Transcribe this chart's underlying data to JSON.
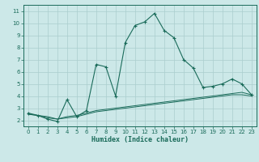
{
  "xlabel": "Humidex (Indice chaleur)",
  "bg_color": "#cce8e8",
  "grid_color": "#aacece",
  "line_color": "#1a6b5a",
  "spine_color": "#1a6b5a",
  "xlim": [
    -0.5,
    23.5
  ],
  "ylim": [
    1.5,
    11.5
  ],
  "xticks": [
    0,
    1,
    2,
    3,
    4,
    5,
    6,
    7,
    8,
    9,
    10,
    11,
    12,
    13,
    14,
    15,
    16,
    17,
    18,
    19,
    20,
    21,
    22,
    23
  ],
  "yticks": [
    2,
    3,
    4,
    5,
    6,
    7,
    8,
    9,
    10,
    11
  ],
  "series1_x": [
    0,
    1,
    2,
    3,
    4,
    5,
    6,
    7,
    8,
    9,
    10,
    11,
    12,
    13,
    14,
    15,
    16,
    17,
    18,
    19,
    20,
    21,
    22,
    23
  ],
  "series1_y": [
    2.6,
    2.4,
    2.1,
    1.9,
    3.7,
    2.3,
    2.8,
    6.6,
    6.4,
    4.0,
    8.4,
    9.8,
    10.1,
    10.8,
    9.4,
    8.8,
    7.0,
    6.3,
    4.7,
    4.8,
    5.0,
    5.4,
    5.0,
    4.1
  ],
  "series2_x": [
    0,
    1,
    2,
    3,
    4,
    5,
    6,
    7,
    8,
    9,
    10,
    11,
    12,
    13,
    14,
    15,
    16,
    17,
    18,
    19,
    20,
    21,
    22,
    23
  ],
  "series2_y": [
    2.5,
    2.4,
    2.2,
    2.1,
    2.3,
    2.4,
    2.6,
    2.8,
    2.9,
    3.0,
    3.1,
    3.2,
    3.3,
    3.4,
    3.5,
    3.6,
    3.7,
    3.8,
    3.9,
    4.0,
    4.1,
    4.2,
    4.3,
    4.1
  ],
  "series3_x": [
    0,
    1,
    2,
    3,
    4,
    5,
    6,
    7,
    8,
    9,
    10,
    11,
    12,
    13,
    14,
    15,
    16,
    17,
    18,
    19,
    20,
    21,
    22,
    23
  ],
  "series3_y": [
    2.5,
    2.4,
    2.3,
    2.1,
    2.2,
    2.3,
    2.5,
    2.7,
    2.8,
    2.9,
    3.0,
    3.1,
    3.2,
    3.3,
    3.4,
    3.5,
    3.6,
    3.7,
    3.8,
    3.9,
    4.0,
    4.1,
    4.1,
    4.0
  ]
}
